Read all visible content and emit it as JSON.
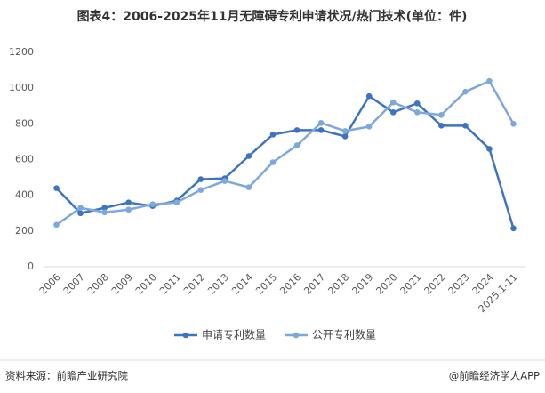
{
  "chart_data": {
    "type": "line",
    "title": "图表4：2006-2025年11月无障碍专利申请状况/热门技术(单位：件)",
    "categories": [
      "2006",
      "2007",
      "2008",
      "2009",
      "2010",
      "2011",
      "2012",
      "2013",
      "2014",
      "2015",
      "2016",
      "2017",
      "2018",
      "2019",
      "2020",
      "2021",
      "2022",
      "2023",
      "2024",
      "2025.1-11"
    ],
    "series": [
      {
        "name": "申请专利数量",
        "color": "#3d74c2",
        "values": [
          440,
          300,
          330,
          360,
          340,
          370,
          490,
          495,
          620,
          740,
          765,
          765,
          730,
          955,
          865,
          915,
          790,
          790,
          660,
          215
        ]
      },
      {
        "name": "公开专利数量",
        "color": "#7ea8dc",
        "values": [
          235,
          330,
          305,
          320,
          350,
          360,
          430,
          480,
          445,
          585,
          680,
          805,
          760,
          785,
          920,
          865,
          850,
          980,
          1040,
          800
        ]
      }
    ],
    "ylim": [
      0,
      1200
    ],
    "yticks": [
      0,
      200,
      400,
      600,
      800,
      1000,
      1200
    ],
    "grid": false,
    "legend": "bottom",
    "source": "资料来源：前瞻产业研究院",
    "credit": "@前瞻经济学人APP"
  }
}
